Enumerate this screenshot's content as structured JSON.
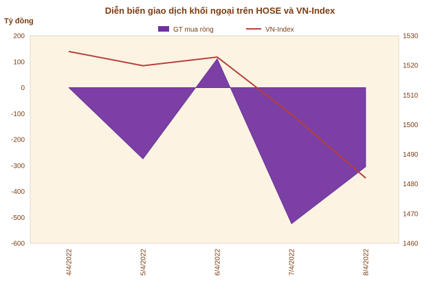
{
  "chart_data": {
    "type": "area",
    "title": "Diễn biến giao dịch khối ngoại trên HOSE và VN-Index",
    "ylabel": "Tỷ đồng",
    "categories": [
      "4/4/2022",
      "5/4/2022",
      "6/4/2022",
      "7/4/2022",
      "8/4/2022"
    ],
    "y_left_ticks": [
      "200",
      "100",
      "0",
      "-100",
      "-200",
      "-300",
      "-400",
      "-500",
      "-600"
    ],
    "y_right_ticks": [
      "1530",
      "1520",
      "1510",
      "1500",
      "1490",
      "1480",
      "1470",
      "1460"
    ],
    "ylim_left": [
      -600,
      200
    ],
    "ylim_right": [
      1460,
      1530
    ],
    "series": [
      {
        "name": "GT mua ròng",
        "type": "area",
        "axis": "left",
        "color": "#7030a0",
        "values": [
          0,
          -275,
          112,
          -525,
          -305
        ]
      },
      {
        "name": "VN-Index",
        "type": "line",
        "axis": "right",
        "color": "#b5403b",
        "values": [
          1524.7,
          1519.9,
          1522.8,
          1503.5,
          1482.0
        ]
      }
    ],
    "plot_background": "#fdf3e3",
    "legend_position": "top"
  }
}
